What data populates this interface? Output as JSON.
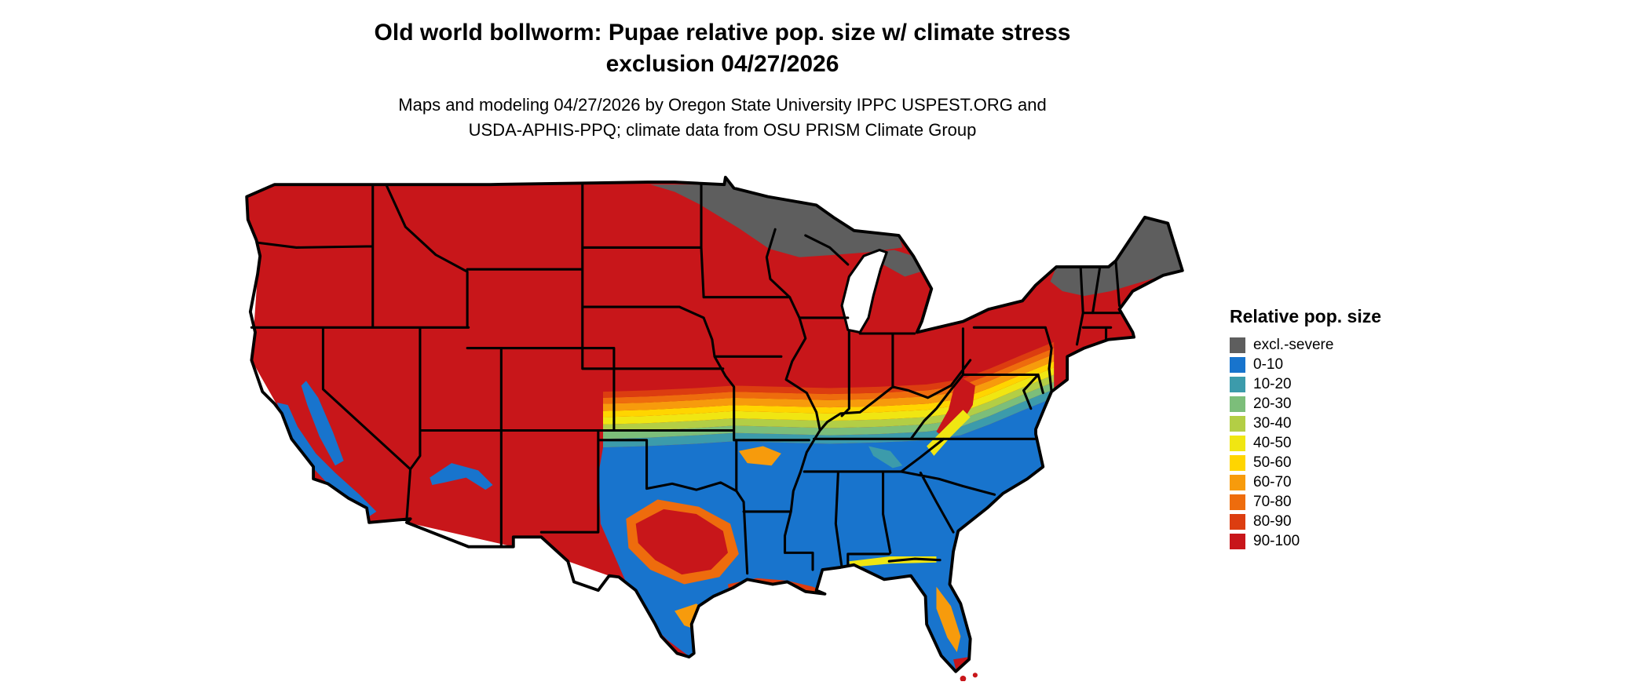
{
  "header": {
    "title_line1": "Old world bollworm: Pupae relative pop. size w/ climate stress",
    "title_line2": "exclusion 04/27/2026",
    "subtitle_line1": "Maps and modeling 04/27/2026 by Oregon State University IPPC USPEST.ORG and",
    "subtitle_line2": "USDA-APHIS-PPQ; climate data from OSU PRISM Climate Group"
  },
  "map": {
    "region": "Continental United States",
    "kind": "raster climate-model map"
  },
  "legend": {
    "title": "Relative pop. size",
    "items": [
      {
        "key": "excl",
        "label": "excl.-severe",
        "color": "#5E5E5E"
      },
      {
        "key": "0-10",
        "label": "0-10",
        "color": "#1874CD"
      },
      {
        "key": "10-20",
        "label": "10-20",
        "color": "#3C9BAB"
      },
      {
        "key": "20-30",
        "label": "20-30",
        "color": "#7CBE7A"
      },
      {
        "key": "30-40",
        "label": "30-40",
        "color": "#B3CE45"
      },
      {
        "key": "40-50",
        "label": "40-50",
        "color": "#F0E612"
      },
      {
        "key": "50-60",
        "label": "50-60",
        "color": "#FFD500"
      },
      {
        "key": "60-70",
        "label": "60-70",
        "color": "#F79B0C"
      },
      {
        "key": "70-80",
        "label": "70-80",
        "color": "#EE6C0D"
      },
      {
        "key": "80-90",
        "label": "80-90",
        "color": "#DC3D10"
      },
      {
        "key": "90-100",
        "label": "90-100",
        "color": "#C8161A"
      }
    ]
  }
}
